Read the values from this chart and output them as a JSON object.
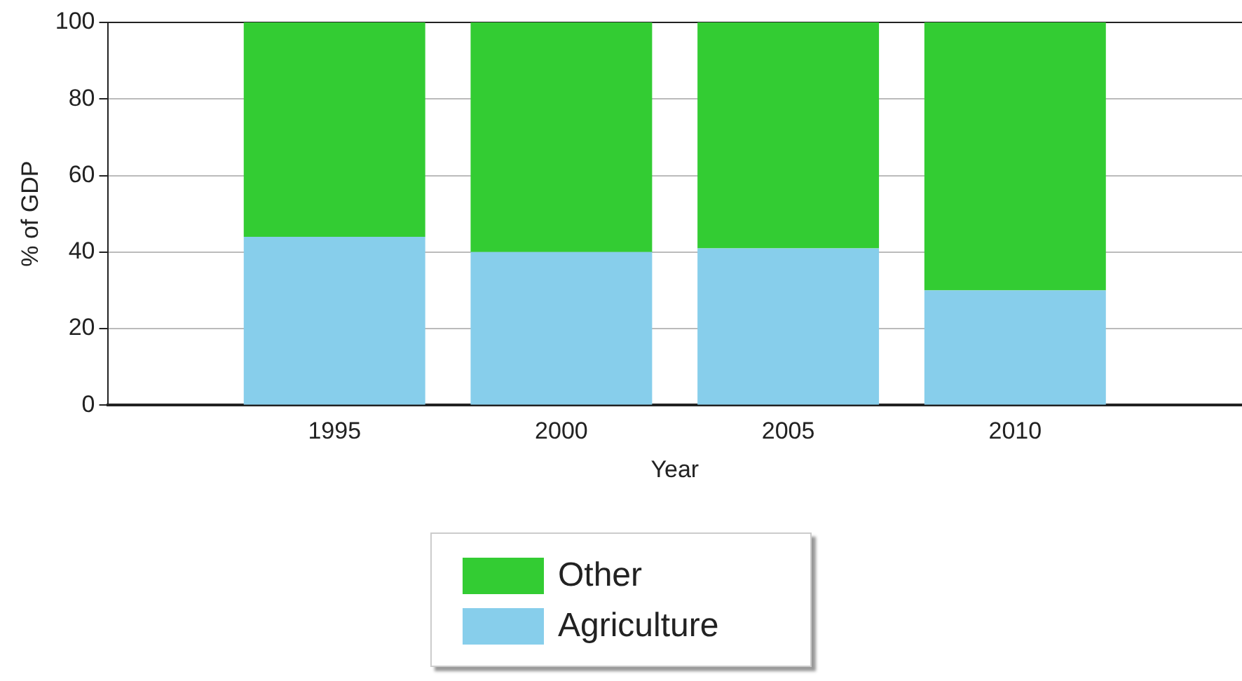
{
  "chart_data": {
    "type": "bar",
    "stacked": true,
    "xlabel": "Year",
    "ylabel": "% of GDP",
    "categories": [
      "1995",
      "2000",
      "2005",
      "2010"
    ],
    "series": [
      {
        "name": "Agriculture",
        "color": "#87ceeb",
        "values": [
          44,
          40,
          41,
          30
        ]
      },
      {
        "name": "Other",
        "color": "#33cc33",
        "values": [
          56,
          60,
          59,
          70
        ]
      }
    ],
    "ylim": [
      0,
      100
    ],
    "yticks": [
      0,
      20,
      40,
      60,
      80,
      100
    ],
    "grid": "y",
    "legend": "bottom"
  }
}
